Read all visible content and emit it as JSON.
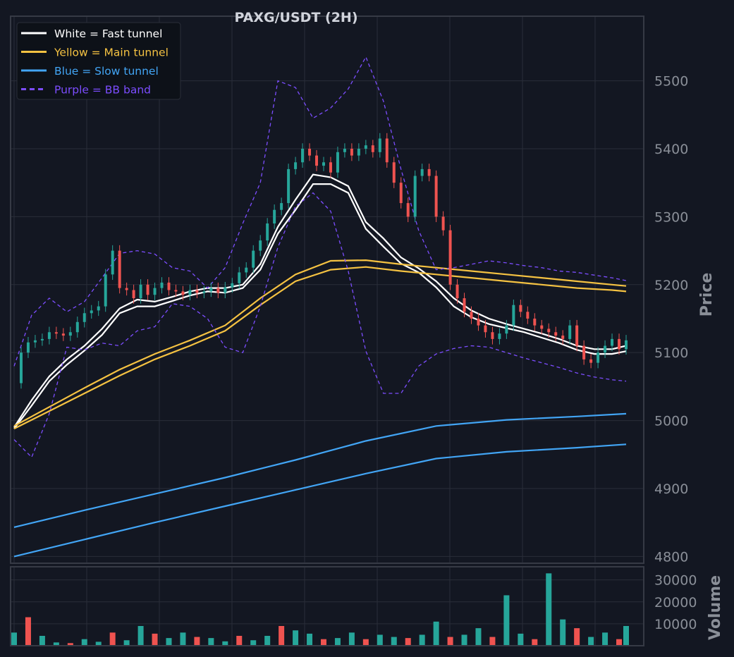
{
  "chart_data": {
    "type": "line",
    "title": "PAXG/USDT (2H)",
    "price_axis": {
      "label": "Price",
      "ylim": [
        4790,
        5595
      ],
      "ticks": [
        4800,
        4900,
        5000,
        5100,
        5200,
        5300,
        5400,
        5500
      ]
    },
    "volume_axis": {
      "label": "Volume",
      "ylim": [
        0,
        36000
      ],
      "ticks": [
        10000,
        20000,
        30000
      ]
    },
    "x_range": [
      0,
      174
    ],
    "grid": true,
    "legend_position": "top-left",
    "legend": [
      {
        "label": "White = Fast tunnel",
        "color": "#ffffff",
        "dash": false
      },
      {
        "label": "Yellow = Main tunnel",
        "color": "#f5c242",
        "dash": false
      },
      {
        "label": "Blue = Slow tunnel",
        "color": "#42a5f5",
        "dash": false
      },
      {
        "label": "Purple = BB band",
        "color": "#7c4dff",
        "dash": true
      }
    ],
    "colors": {
      "up": "#26a69a",
      "down": "#ef5350",
      "background": "#131722",
      "grid": "#2a2e39",
      "frame": "#363a45"
    },
    "series": [
      {
        "name": "Fast tunnel upper",
        "color": "#ffffff",
        "x": [
          0,
          5,
          10,
          15,
          20,
          25,
          30,
          35,
          40,
          45,
          50,
          55,
          60,
          65,
          70,
          75,
          80,
          85,
          90,
          95,
          100,
          105,
          110,
          115,
          120,
          125,
          130,
          135,
          140,
          145,
          150,
          155,
          160,
          165,
          170,
          174
        ],
        "y": [
          4990,
          5030,
          5065,
          5090,
          5110,
          5135,
          5165,
          5178,
          5175,
          5182,
          5190,
          5195,
          5195,
          5200,
          5230,
          5285,
          5325,
          5362,
          5358,
          5345,
          5292,
          5268,
          5240,
          5224,
          5205,
          5180,
          5162,
          5150,
          5142,
          5135,
          5128,
          5120,
          5110,
          5105,
          5105,
          5110
        ]
      },
      {
        "name": "Fast tunnel lower",
        "color": "#ffffff",
        "x": [
          0,
          5,
          10,
          15,
          20,
          25,
          30,
          35,
          40,
          45,
          50,
          55,
          60,
          65,
          70,
          75,
          80,
          85,
          90,
          95,
          100,
          105,
          110,
          115,
          120,
          125,
          130,
          135,
          140,
          145,
          150,
          155,
          160,
          165,
          170,
          174
        ],
        "y": [
          4988,
          5022,
          5058,
          5082,
          5103,
          5126,
          5158,
          5168,
          5168,
          5176,
          5184,
          5190,
          5188,
          5195,
          5222,
          5275,
          5310,
          5348,
          5348,
          5335,
          5282,
          5256,
          5231,
          5218,
          5196,
          5168,
          5152,
          5142,
          5136,
          5130,
          5122,
          5114,
          5104,
          5098,
          5098,
          5102
        ]
      },
      {
        "name": "Main tunnel upper",
        "color": "#f5c242",
        "x": [
          0,
          10,
          20,
          30,
          40,
          50,
          60,
          70,
          80,
          90,
          100,
          110,
          120,
          130,
          140,
          150,
          160,
          170,
          174
        ],
        "y": [
          4992,
          5020,
          5048,
          5075,
          5098,
          5118,
          5140,
          5180,
          5215,
          5235,
          5236,
          5230,
          5225,
          5220,
          5215,
          5210,
          5205,
          5200,
          5198
        ]
      },
      {
        "name": "Main tunnel lower",
        "color": "#f5c242",
        "x": [
          0,
          10,
          20,
          30,
          40,
          50,
          60,
          70,
          80,
          90,
          100,
          110,
          120,
          130,
          140,
          150,
          160,
          170,
          174
        ],
        "y": [
          4988,
          5014,
          5040,
          5066,
          5090,
          5110,
          5132,
          5170,
          5205,
          5222,
          5226,
          5220,
          5215,
          5210,
          5205,
          5200,
          5195,
          5192,
          5190
        ]
      },
      {
        "name": "Slow tunnel upper",
        "color": "#42a5f5",
        "x": [
          0,
          20,
          40,
          60,
          80,
          100,
          120,
          140,
          160,
          174
        ],
        "y": [
          4843,
          4868,
          4892,
          4916,
          4942,
          4970,
          4992,
          5001,
          5006,
          5010
        ]
      },
      {
        "name": "Slow tunnel lower",
        "color": "#42a5f5",
        "x": [
          0,
          20,
          40,
          60,
          80,
          100,
          120,
          140,
          160,
          174
        ],
        "y": [
          4800,
          4825,
          4850,
          4874,
          4898,
          4922,
          4944,
          4954,
          4960,
          4965
        ]
      },
      {
        "name": "BB upper",
        "color": "#7c4dff",
        "dash": true,
        "x": [
          0,
          5,
          10,
          15,
          20,
          25,
          30,
          35,
          40,
          45,
          50,
          55,
          60,
          65,
          70,
          75,
          80,
          85,
          90,
          95,
          100,
          105,
          110,
          115,
          120,
          125,
          130,
          135,
          140,
          145,
          150,
          155,
          160,
          165,
          170,
          174
        ],
        "y": [
          5080,
          5155,
          5180,
          5160,
          5175,
          5210,
          5246,
          5250,
          5245,
          5225,
          5220,
          5195,
          5225,
          5290,
          5350,
          5500,
          5490,
          5445,
          5460,
          5488,
          5535,
          5470,
          5370,
          5280,
          5222,
          5225,
          5230,
          5235,
          5232,
          5228,
          5225,
          5220,
          5218,
          5214,
          5210,
          5206
        ]
      },
      {
        "name": "BB lower",
        "color": "#7c4dff",
        "dash": true,
        "x": [
          0,
          5,
          10,
          15,
          20,
          25,
          30,
          35,
          40,
          45,
          50,
          55,
          60,
          65,
          70,
          75,
          80,
          85,
          90,
          95,
          100,
          105,
          110,
          115,
          120,
          125,
          130,
          135,
          140,
          145,
          150,
          155,
          160,
          165,
          170,
          174
        ],
        "y": [
          4972,
          4946,
          5010,
          5108,
          5104,
          5114,
          5110,
          5132,
          5138,
          5172,
          5168,
          5150,
          5108,
          5100,
          5168,
          5255,
          5315,
          5335,
          5308,
          5220,
          5102,
          5040,
          5040,
          5080,
          5098,
          5106,
          5110,
          5108,
          5100,
          5092,
          5085,
          5078,
          5070,
          5064,
          5060,
          5058
        ]
      },
      {
        "name": "Price",
        "color": "#26a69a",
        "x": [
          0,
          2,
          4,
          6,
          8,
          10,
          12,
          14,
          16,
          18,
          20,
          22,
          24,
          26,
          28,
          30,
          32,
          34,
          36,
          38,
          40,
          42,
          44,
          46,
          48,
          50,
          52,
          54,
          56,
          58,
          60,
          62,
          64,
          66,
          68,
          70,
          72,
          74,
          76,
          78,
          80,
          82,
          84,
          86,
          88,
          90,
          92,
          94,
          96,
          98,
          100,
          102,
          104,
          106,
          108,
          110,
          112,
          114,
          116,
          118,
          120,
          122,
          124,
          126,
          128,
          130,
          132,
          134,
          136,
          138,
          140,
          142,
          144,
          146,
          148,
          150,
          152,
          154,
          156,
          158,
          160,
          162,
          164,
          166,
          168,
          170,
          172,
          174
        ],
        "y": [
          5055,
          5100,
          5115,
          5118,
          5120,
          5130,
          5128,
          5125,
          5130,
          5145,
          5158,
          5162,
          5168,
          5215,
          5250,
          5195,
          5192,
          5180,
          5200,
          5185,
          5195,
          5203,
          5192,
          5190,
          5185,
          5192,
          5188,
          5190,
          5195,
          5188,
          5196,
          5202,
          5218,
          5225,
          5250,
          5265,
          5290,
          5310,
          5320,
          5370,
          5380,
          5400,
          5390,
          5375,
          5380,
          5365,
          5395,
          5400,
          5390,
          5400,
          5405,
          5395,
          5415,
          5380,
          5350,
          5320,
          5300,
          5360,
          5370,
          5360,
          5300,
          5280,
          5200,
          5180,
          5160,
          5150,
          5140,
          5130,
          5120,
          5128,
          5140,
          5170,
          5160,
          5150,
          5140,
          5135,
          5130,
          5125,
          5120,
          5140,
          5110,
          5090,
          5085,
          5100,
          5110,
          5120,
          5105,
          5118
        ]
      }
    ],
    "volume": {
      "x": [
        0,
        4,
        8,
        12,
        16,
        20,
        24,
        28,
        32,
        36,
        40,
        44,
        48,
        52,
        56,
        60,
        64,
        68,
        72,
        76,
        80,
        84,
        88,
        92,
        96,
        100,
        104,
        108,
        112,
        116,
        120,
        124,
        128,
        132,
        136,
        140,
        144,
        148,
        152,
        156,
        160,
        164,
        168,
        172,
        174
      ],
      "values": [
        6000,
        13000,
        4500,
        1500,
        1200,
        3000,
        1800,
        6000,
        2500,
        9000,
        5500,
        3500,
        6000,
        4000,
        3500,
        2000,
        4500,
        2500,
        4500,
        9000,
        7000,
        5500,
        3000,
        3500,
        6000,
        3000,
        5000,
        4000,
        3500,
        5000,
        11000,
        4000,
        5000,
        8000,
        4000,
        23000,
        5500,
        3000,
        33000,
        12000,
        8000,
        4000,
        6000,
        3000,
        9000
      ]
    }
  }
}
